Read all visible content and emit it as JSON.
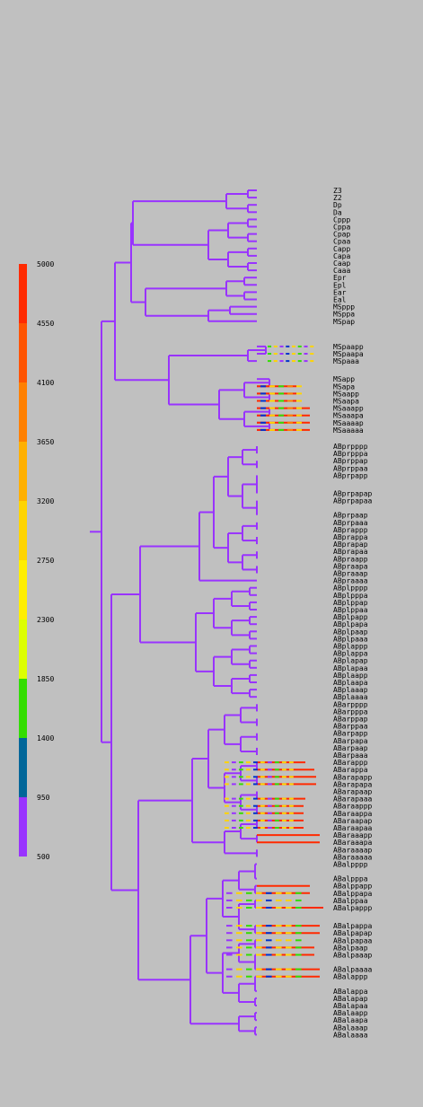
{
  "legend": {
    "ticks": [
      "5000",
      "4550",
      "4100",
      "3650",
      "3200",
      "2750",
      "2300",
      "1850",
      "1400",
      "950",
      "500"
    ],
    "colors": [
      "#ff2a00",
      "#ff5400",
      "#ff8000",
      "#ffb000",
      "#ffd400",
      "#ffee00",
      "#ddff00",
      "#33dd00",
      "#006699",
      "#9933ff"
    ]
  },
  "tree": {
    "branch_color": "#9933ff",
    "leaves": [
      "Z3",
      "Z2",
      "Dp",
      "Da",
      "Cppp",
      "Cppa",
      "Cpap",
      "Cpaa",
      "Capp",
      "Capa",
      "Caap",
      "Caaa",
      "Epr",
      "Epl",
      "Ear",
      "Eal",
      "MSppp",
      "MSppa",
      "MSpap",
      "MSpaapp",
      "MSpaapa",
      "MSpaaa",
      "MSapp",
      "MSapa",
      "MSaapp",
      "MSaapa",
      "MSaaapp",
      "MSaaapa",
      "MSaaaap",
      "MSaaaaa",
      "ABprpppp",
      "ABprpppa",
      "ABprppap",
      "ABprppaa",
      "ABprpapp",
      "ABprpapap",
      "ABprpapaa",
      "ABprpaap",
      "ABprpaaa",
      "ABprappp",
      "ABprappa",
      "ABprapap",
      "ABprapaa",
      "ABpraapp",
      "ABpraapa",
      "ABpraaap",
      "ABpraaaa",
      "ABplpppp",
      "ABplpppa",
      "ABplppap",
      "ABplppaa",
      "ABplpapp",
      "ABplpapa",
      "ABplpaap",
      "ABplpaaa",
      "ABplappp",
      "ABplappa",
      "ABplapap",
      "ABplapaa",
      "ABplaapp",
      "ABplaapa",
      "ABplaaap",
      "ABplaaaa",
      "ABarpppp",
      "ABarpppa",
      "ABarppap",
      "ABarppaa",
      "ABarpapp",
      "ABarpapa",
      "ABarpaap",
      "ABarpaaa",
      "ABarappp",
      "ABarappa",
      "ABarapapp",
      "ABarapapa",
      "ABarapaap",
      "ABarapaaa",
      "ABaraappp",
      "ABaraappa",
      "ABaraapap",
      "ABaraapaa",
      "ABaraaapp",
      "ABaraaapa",
      "ABaraaaap",
      "ABaraaaaa",
      "ABalpppp",
      "ABalpppa",
      "ABalppapp",
      "ABalppapa",
      "ABalppaa",
      "ABalpappp",
      "ABalpappa",
      "ABalpapap",
      "ABalpapaa",
      "ABalpaap",
      "ABalpaaap",
      "ABalpaaaa",
      "ABalappp",
      "ABalappa",
      "ABalapap",
      "ABalapaa",
      "ABalaapp",
      "ABalaapa",
      "ABalaaap",
      "ABalaaaa"
    ]
  }
}
